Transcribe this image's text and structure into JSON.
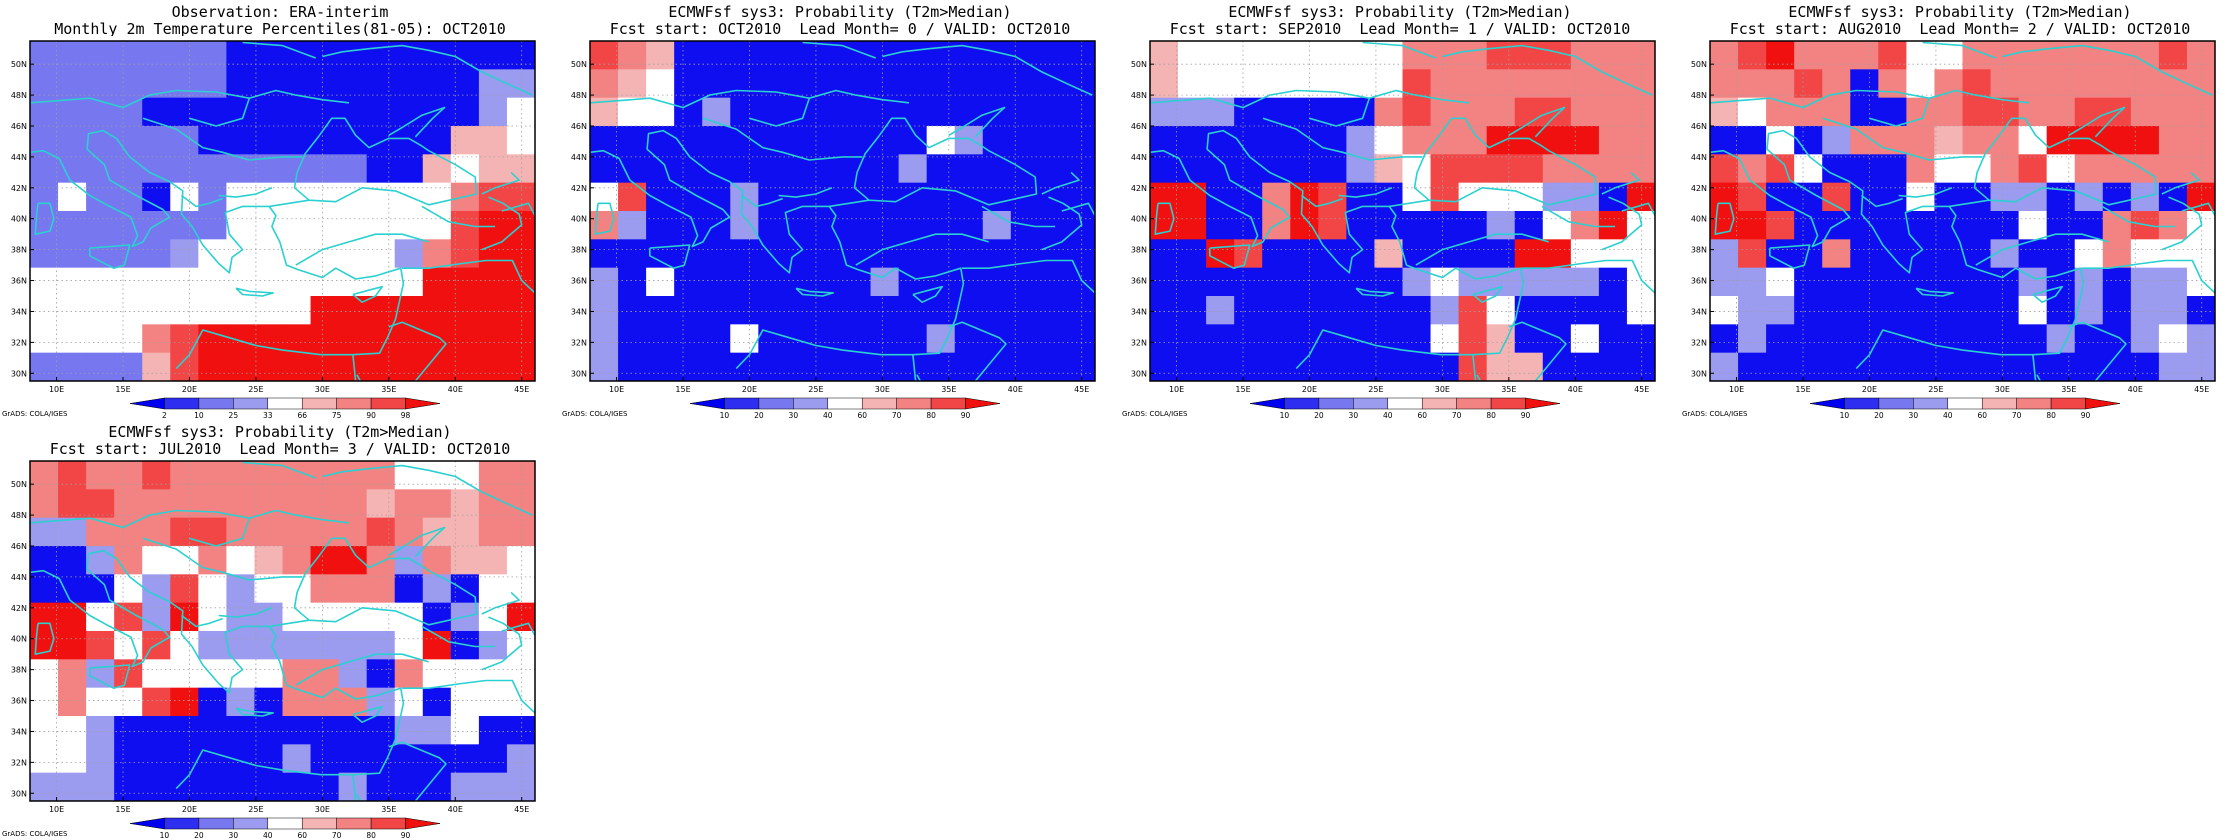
{
  "panels": [
    {
      "title_line1": "Observation: ERA-interim",
      "title_line2": "Monthly 2m Temperature Percentiles(81-05): OCT2010",
      "legend_labels": [
        "2",
        "10",
        "25",
        "33",
        "66",
        "75",
        "90",
        "98"
      ],
      "credit": "GrADS: COLA/IGES",
      "grid": [
        "aaaaaaabbbbbbbbbbb",
        "aaaaaaabbbbbbbbbcc",
        "aaaabbbbbbbbbbbbcd",
        "aaaaaabbbbbbbbbeed",
        "aaaaaaaaaaaabbedee",
        "adaabdaddddddddfgg",
        "aaaaaaaddddddddghh",
        "aaaaacdddddddcfghh",
        "ddddddddddddddhhhh",
        "ddddddddddhhhhhhhh",
        "ddddfghhhhhhhhhhhh",
        "aaaaeghhhhhhhhhhhh"
      ]
    },
    {
      "title_line1": "ECMWFsf sys3: Probability (T2m>Median)",
      "title_line2": "Fcst start: OCT2010  Lead Month= 0 / VALID: OCT2010",
      "legend_labels": [
        "10",
        "20",
        "30",
        "40",
        "60",
        "70",
        "80",
        "90"
      ],
      "credit": "GrADS: COLA/IGES",
      "grid": [
        "gfebbbbbbbbbbbbbbb",
        "fedbbbbbbbbbbbbbbb",
        "eddbcbbbbbbbbbbbbb",
        "bbbbbbbbbbbbdcbbbb",
        "bbbbbbbbbbbcbbbbbb",
        "dgbbbcbbbbbbbbbbbb",
        "fcbbbcbbbbbbbbcbbb",
        "bbbbbbbbbbbbbbbbbb",
        "cbdbbbbbbbcbbbbbbb",
        "cbbbbbbbbbbbbbbbbb",
        "cbbbbdbbbbbbcbbbbb",
        "cbbbbbbbbbbbbbbbbb"
      ]
    },
    {
      "title_line1": "ECMWFsf sys3: Probability (T2m>Median)",
      "title_line2": "Fcst start: SEP2010  Lead Month= 1 / VALID: OCT2010",
      "legend_labels": [
        "10",
        "20",
        "30",
        "40",
        "60",
        "70",
        "80",
        "90"
      ],
      "credit": "GrADS: COLA/IGES",
      "grid": [
        "eddddddddfffgggfff",
        "eddddddddgffffffff",
        "cccbbbbbfgfffggfff",
        "bbbbbbbcdfffhhhhff",
        "bbbbbbbcedggggffff",
        "hhbbfhgbbdgdddccbh",
        "hhbbfhgbbbbbcbdfhd",
        "bbhgbbbbebbbbhhddd",
        "bbbbbbbbbcdcccccbd",
        "bbcbbbbbbbcgdbbbbd",
        "bbbbbbbbbbdgebbdbb",
        "bbbbbbbbbbbgeebbbb"
      ]
    },
    {
      "title_line1": "ECMWFsf sys3: Probability (T2m>Median)",
      "title_line2": "Fcst start: AUG2010  Lead Month= 2 / VALID: OCT2010",
      "legend_labels": [
        "10",
        "20",
        "30",
        "40",
        "60",
        "70",
        "80",
        "90"
      ],
      "credit": "GrADS: COLA/IGES",
      "grid": [
        "fghfffgddfffffffgf",
        "fffgfbfdfgffffffff",
        "edfffbbffggffggfff",
        "bbdbcfffeffdhhhhff",
        "gfgdbbbfddfgdfffff",
        "hgbbgbbdbbccbcbcbh",
        "hhgbbbbbbbbdbbfgfd",
        "cgbbfbbbbbcbbdfddd",
        "ccdbbbbbbbbcbcbccd",
        "dccbbbbbbbbdbcbccb",
        "bcbbbbbbbbbbcbbcdc",
        "cbbbbbbbbbbbbbbbcc"
      ]
    },
    {
      "title_line1": "ECMWFsf sys3: Probability (T2m>Median)",
      "title_line2": "Fcst start: JUL2010  Lead Month= 3 / VALID: OCT2010",
      "legend_labels": [
        "10",
        "20",
        "30",
        "40",
        "60",
        "70",
        "80",
        "90"
      ],
      "credit": "GrADS: COLA/IGES",
      "grid": [
        "fgffgffffffffdddff",
        "fggfffffffffeffeff",
        "ccfffggfffffgfeeff",
        "bbcfddfdefhhfcfeed",
        "bbbdcgdcddfffbcbdd",
        "hhdgchdccdddddbcdh",
        "hhgdgdcccccccdhbcd",
        "dfcgdddddffcbfdddd",
        "dfddghbcbfffcdbddd",
        "ddcbbbbbbbbbbccdbb",
        "ddcbbbbbbcbbbbbbbc",
        "cccbbbbbbbbcbbbccc"
      ]
    }
  ],
  "axis": {
    "lon_ticks": [
      "10E",
      "15E",
      "20E",
      "25E",
      "30E",
      "35E",
      "40E",
      "45E"
    ],
    "lat_ticks": [
      "30N",
      "32N",
      "34N",
      "36N",
      "38N",
      "40N",
      "42N",
      "44N",
      "46N",
      "48N",
      "50N"
    ]
  },
  "map": {
    "lon_range": [
      8,
      46
    ],
    "lat_range": [
      29.5,
      51.5
    ]
  },
  "colors": {
    "a": "#7777f0",
    "b": "#0e0ef0",
    "c": "#9b9bf0",
    "d": "#ffffff",
    "e": "#f5b4b4",
    "f": "#f38282",
    "g": "#f24545",
    "h": "#f01010",
    "coast": "#2bd0d0",
    "grid_line": "#a0a0a0",
    "frame": "#000000"
  },
  "legend_colors": [
    "#0000f0",
    "#2e2ef0",
    "#7777f0",
    "#9b9bf0",
    "#ffffff",
    "#f5b4b4",
    "#f38282",
    "#f24545",
    "#f01010"
  ]
}
